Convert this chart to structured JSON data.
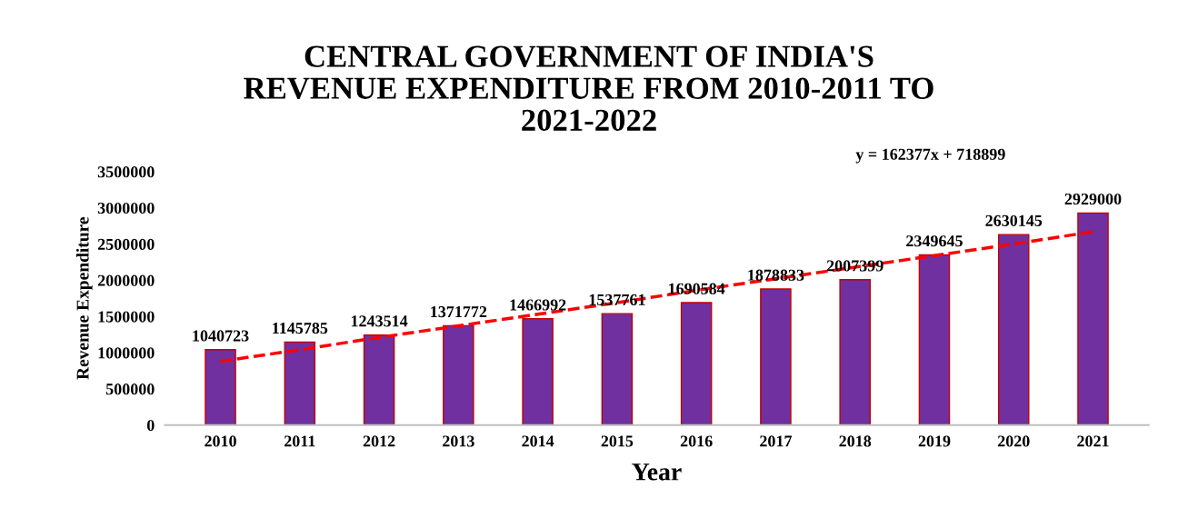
{
  "chart_data": {
    "type": "bar",
    "title": "CENTRAL GOVERNMENT OF INDIA'S\nREVENUE EXPENDITURE FROM 2010-2011 TO\n2021-2022",
    "xlabel": "Year",
    "ylabel": "Revenue Expenditure",
    "categories": [
      "2010",
      "2011",
      "2012",
      "2013",
      "2014",
      "2015",
      "2016",
      "2017",
      "2018",
      "2019",
      "2020",
      "2021"
    ],
    "series": [
      {
        "color": "#7030a0",
        "values": [
          1040723,
          1145785,
          1243514,
          1371772,
          1466992,
          1537761,
          1690584,
          1878833,
          2007399,
          2349645,
          2630145,
          2929000
        ],
        "value_labels": [
          "1040723",
          "1145785",
          "1243514",
          "1371772",
          "1466992",
          "1537761",
          "1690584",
          "1878833",
          "2007399",
          "2349645",
          "2630145",
          "2929000"
        ]
      },
      {
        "type": "line",
        "color": "#ff0000",
        "line_style": "dashed",
        "values": [
          880000,
          1040000,
          1210000,
          1370000,
          1530000,
          1690000,
          1860000,
          2020000,
          2180000,
          2340000,
          2500000,
          2670000
        ]
      }
    ],
    "annotations": [
      "y = 162377x + 718899"
    ],
    "ylim": [
      0,
      3500000
    ],
    "yticks": [
      0,
      500000,
      1000000,
      1500000,
      2000000,
      2500000,
      3000000,
      3500000
    ],
    "grid": false,
    "legend": false
  }
}
